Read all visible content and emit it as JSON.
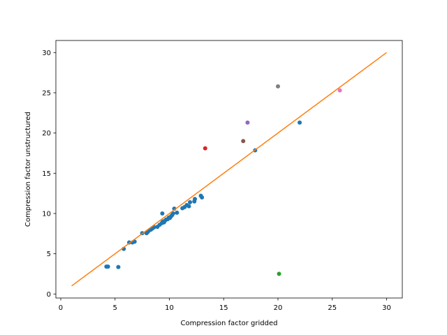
{
  "chart_data": {
    "type": "scatter",
    "xlabel": "Compression factor gridded",
    "ylabel": "Compression factor unstructured",
    "xlim": [
      -0.45,
      31.45
    ],
    "ylim": [
      -0.5,
      31.5
    ],
    "xticks": [
      0,
      5,
      10,
      15,
      20,
      25,
      30
    ],
    "yticks": [
      0,
      5,
      10,
      15,
      20,
      25,
      30
    ],
    "grid": false,
    "legend": "none",
    "series": [
      {
        "color": "#1f77b4",
        "points": [
          [
            4.2,
            3.4
          ],
          [
            4.35,
            3.4
          ],
          [
            5.3,
            3.35
          ],
          [
            5.8,
            5.6
          ],
          [
            6.3,
            6.4
          ],
          [
            6.6,
            6.4
          ],
          [
            6.8,
            6.5
          ],
          [
            7.5,
            7.55
          ],
          [
            7.9,
            7.55
          ],
          [
            8.0,
            7.7
          ],
          [
            8.1,
            7.85
          ],
          [
            8.3,
            8.0
          ],
          [
            8.45,
            8.15
          ],
          [
            8.6,
            8.3
          ],
          [
            8.9,
            8.35
          ],
          [
            9.1,
            8.6
          ],
          [
            9.3,
            8.8
          ],
          [
            9.35,
            10.0
          ],
          [
            9.4,
            9.0
          ],
          [
            9.5,
            8.9
          ],
          [
            9.6,
            9.1
          ],
          [
            9.7,
            9.25
          ],
          [
            9.85,
            9.3
          ],
          [
            9.95,
            9.5
          ],
          [
            10.05,
            9.45
          ],
          [
            10.15,
            9.65
          ],
          [
            10.25,
            9.8
          ],
          [
            10.35,
            10.0
          ],
          [
            10.45,
            10.6
          ],
          [
            10.7,
            10.1
          ],
          [
            11.2,
            10.65
          ],
          [
            11.4,
            10.8
          ],
          [
            11.6,
            11.05
          ],
          [
            11.8,
            10.9
          ],
          [
            11.9,
            11.4
          ],
          [
            12.3,
            11.5
          ],
          [
            12.35,
            11.8
          ],
          [
            12.9,
            12.2
          ],
          [
            13.0,
            12.0
          ],
          [
            17.9,
            17.85
          ],
          [
            22.0,
            21.3
          ]
        ]
      },
      {
        "color": "#d62728",
        "points": [
          [
            13.3,
            18.1
          ]
        ]
      },
      {
        "color": "#9467bd",
        "points": [
          [
            17.2,
            21.3
          ]
        ]
      },
      {
        "color": "#8c564b",
        "points": [
          [
            16.8,
            19.0
          ]
        ]
      },
      {
        "color": "#7f7f7f",
        "points": [
          [
            20.0,
            25.8
          ]
        ]
      },
      {
        "color": "#e377c2",
        "points": [
          [
            25.7,
            25.3
          ]
        ]
      },
      {
        "color": "#2ca02c",
        "points": [
          [
            20.1,
            2.5
          ]
        ]
      }
    ],
    "reference_line": {
      "color": "#ff7f0e",
      "points": [
        [
          1,
          1
        ],
        [
          30,
          30
        ]
      ]
    }
  }
}
